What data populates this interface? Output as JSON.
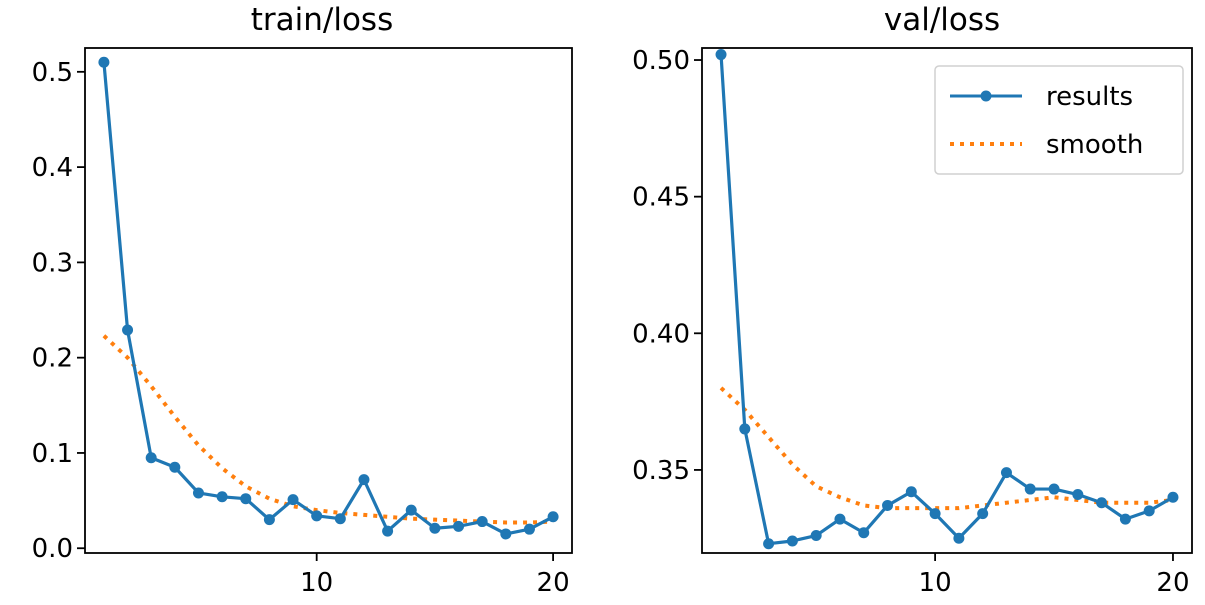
{
  "colors": {
    "results": "#1f77b4",
    "smooth": "#ff7f0e"
  },
  "legend": {
    "results_label": "results",
    "smooth_label": "smooth",
    "position": "upper right of val/loss panel"
  },
  "chart_data": [
    {
      "type": "line",
      "title": "train/loss",
      "xlim": [
        0.2,
        20.8
      ],
      "ylim": [
        -0.005,
        0.525
      ],
      "xticks": [
        10,
        20
      ],
      "xtick_labels": [
        "10",
        "20"
      ],
      "yticks": [
        0.0,
        0.1,
        0.2,
        0.3,
        0.4,
        0.5
      ],
      "ytick_labels": [
        "0.0",
        "0.1",
        "0.2",
        "0.3",
        "0.4",
        "0.5"
      ],
      "x": [
        1,
        2,
        3,
        4,
        5,
        6,
        7,
        8,
        9,
        10,
        11,
        12,
        13,
        14,
        15,
        16,
        17,
        18,
        19,
        20
      ],
      "series": [
        {
          "name": "results",
          "style": "solid-marker",
          "values": [
            0.51,
            0.229,
            0.095,
            0.085,
            0.058,
            0.054,
            0.052,
            0.03,
            0.051,
            0.034,
            0.031,
            0.072,
            0.018,
            0.04,
            0.021,
            0.023,
            0.028,
            0.015,
            0.02,
            0.033
          ]
        },
        {
          "name": "smooth",
          "style": "dotted",
          "values": [
            0.223,
            0.2,
            0.17,
            0.138,
            0.108,
            0.084,
            0.065,
            0.052,
            0.044,
            0.04,
            0.037,
            0.035,
            0.033,
            0.031,
            0.03,
            0.029,
            0.028,
            0.027,
            0.027,
            0.028
          ]
        }
      ]
    },
    {
      "type": "line",
      "title": "val/loss",
      "xlim": [
        0.2,
        20.8
      ],
      "ylim": [
        0.3196,
        0.5044
      ],
      "xticks": [
        10,
        20
      ],
      "xtick_labels": [
        "10",
        "20"
      ],
      "yticks": [
        0.35,
        0.4,
        0.45,
        0.5
      ],
      "ytick_labels": [
        "0.35",
        "0.40",
        "0.45",
        "0.50"
      ],
      "x": [
        1,
        2,
        3,
        4,
        5,
        6,
        7,
        8,
        9,
        10,
        11,
        12,
        13,
        14,
        15,
        16,
        17,
        18,
        19,
        20
      ],
      "series": [
        {
          "name": "results",
          "style": "solid-marker",
          "values": [
            0.502,
            0.365,
            0.323,
            0.324,
            0.326,
            0.332,
            0.327,
            0.337,
            0.342,
            0.334,
            0.325,
            0.334,
            0.349,
            0.343,
            0.343,
            0.341,
            0.338,
            0.332,
            0.335,
            0.34
          ]
        },
        {
          "name": "smooth",
          "style": "dotted",
          "values": [
            0.38,
            0.372,
            0.362,
            0.352,
            0.344,
            0.34,
            0.337,
            0.336,
            0.336,
            0.336,
            0.336,
            0.337,
            0.338,
            0.339,
            0.34,
            0.339,
            0.338,
            0.338,
            0.338,
            0.339
          ]
        }
      ]
    }
  ]
}
